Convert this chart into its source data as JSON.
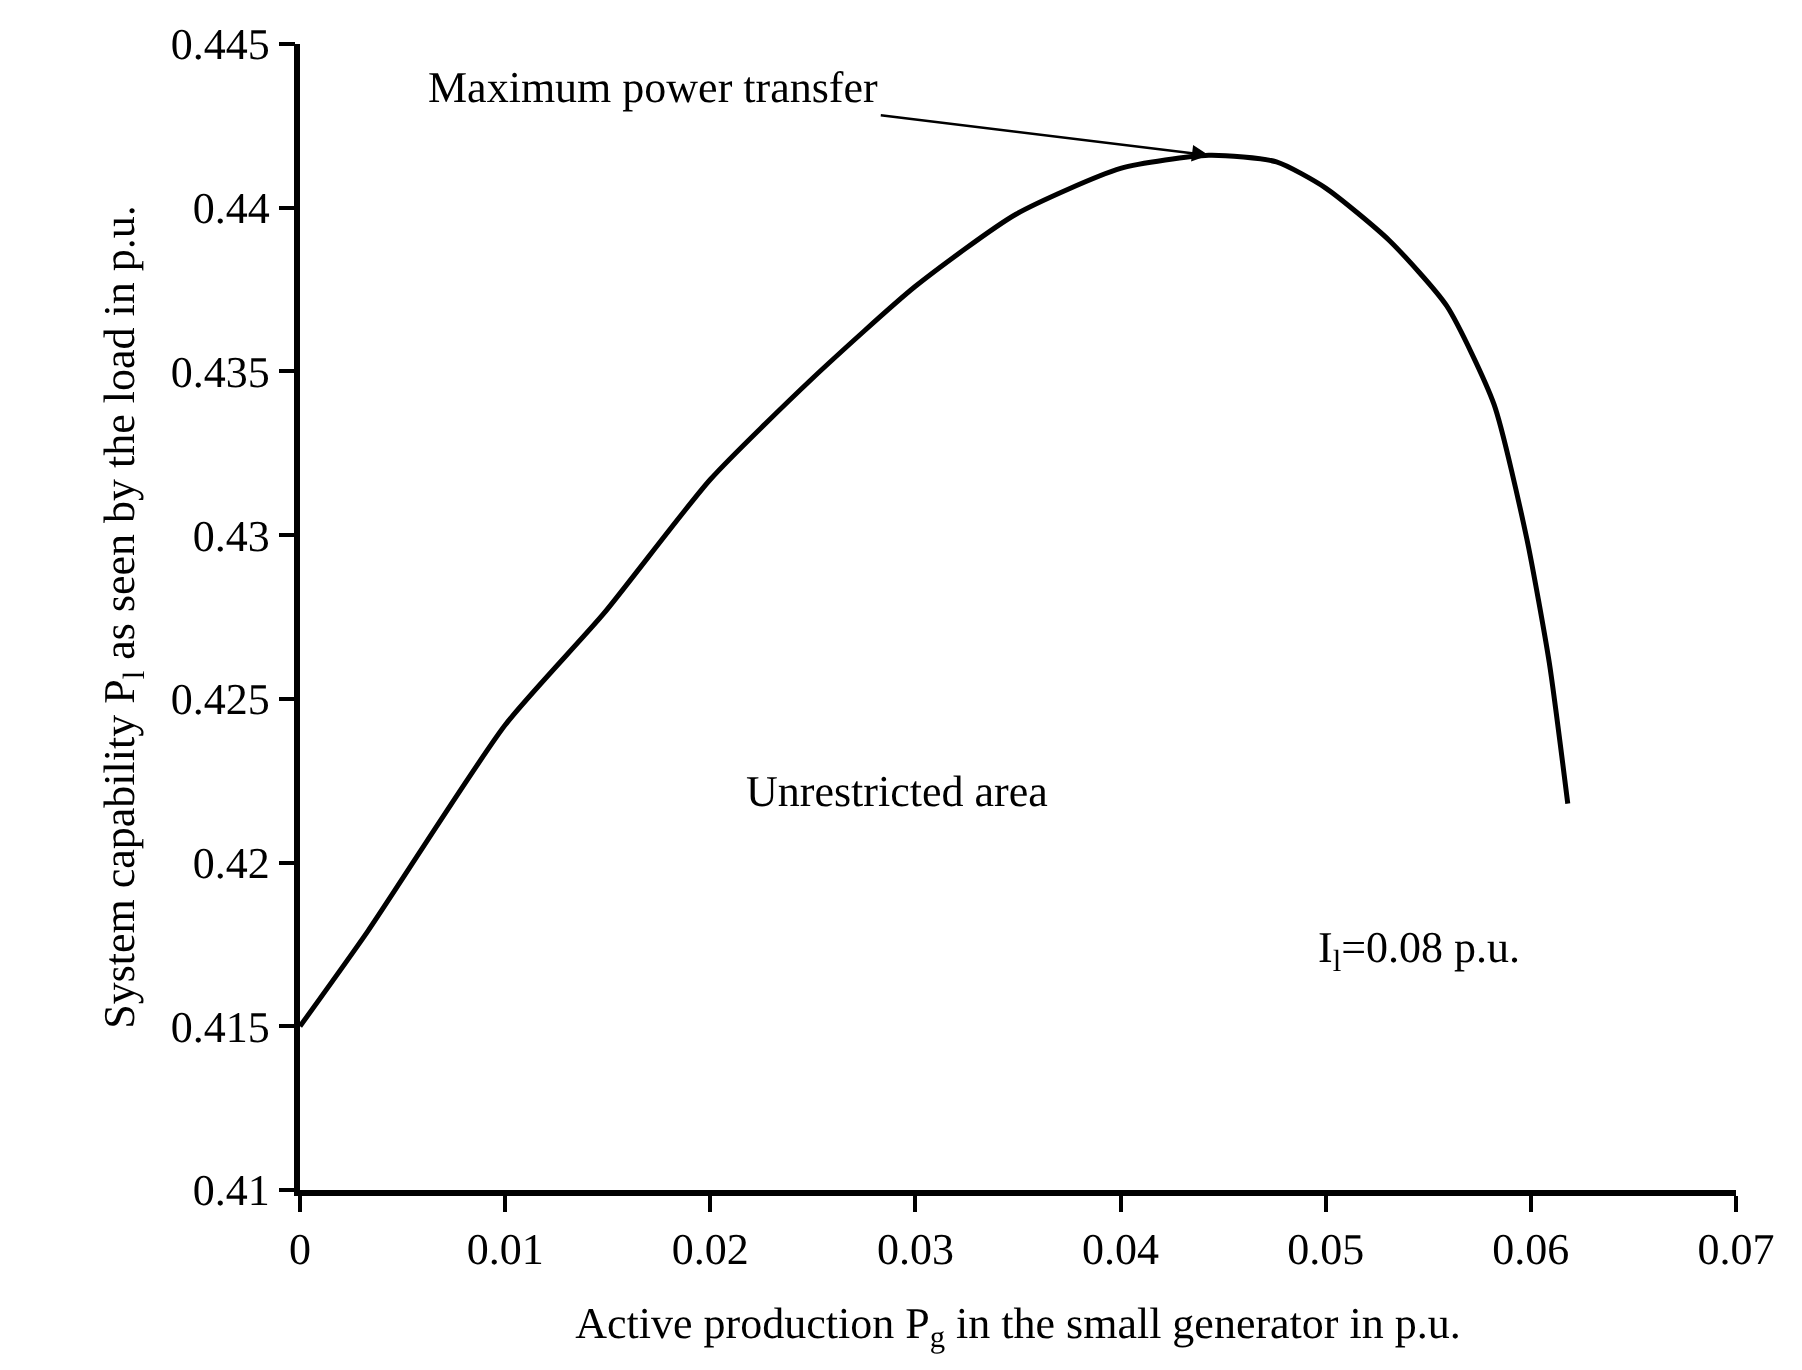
{
  "chart_data": {
    "type": "line",
    "xlabel": "Active production P$_{g}$ in the small generator in p.u.",
    "ylabel": "System capability P$_{l}$ as seen by the load in p.u.",
    "x": [
      0,
      0.0033,
      0.01,
      0.0148,
      0.02,
      0.025,
      0.03,
      0.0349,
      0.04,
      0.0443,
      0.0476,
      0.05,
      0.0531,
      0.0559,
      0.0582,
      0.0598,
      0.0609,
      0.0618
    ],
    "series": [
      {
        "color": "#000000",
        "values": [
          0.415,
          0.4179,
          0.4242,
          0.4276,
          0.4317,
          0.4348,
          0.4376,
          0.4398,
          0.4412,
          0.4416,
          0.4414,
          0.4406,
          0.439,
          0.437,
          0.434,
          0.4299,
          0.4261,
          0.4218
        ]
      }
    ],
    "xlim": [
      0,
      0.07
    ],
    "xticks": [
      0,
      0.01,
      0.02,
      0.03,
      0.04,
      0.05,
      0.06,
      0.07
    ],
    "ylim": [
      0.41,
      0.445
    ],
    "yticks": [
      0.41,
      0.415,
      0.42,
      0.425,
      0.43,
      0.435,
      0.44,
      0.445
    ],
    "grid": false,
    "marker": "none",
    "line_style": "solid",
    "annotations": [
      {
        "text": "Maximum power transfer",
        "x": 0.0443,
        "y": 0.4416
      },
      "Unrestricted area",
      "I$_{l}$=0.08 p.u."
    ]
  }
}
